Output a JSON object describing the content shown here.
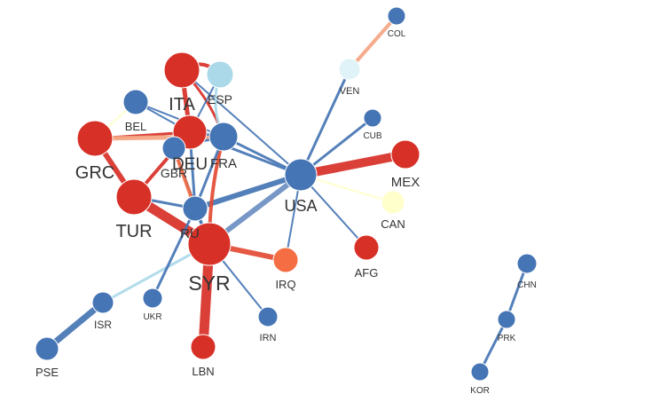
{
  "nodes": [
    {
      "id": "COL",
      "label": "COL",
      "color": "#4575b4"
    },
    {
      "id": "VEN",
      "label": "VEN",
      "color": "#e0f3f8"
    },
    {
      "id": "CUB",
      "label": "CUB",
      "color": "#4575b4"
    },
    {
      "id": "MEX",
      "label": "MEX",
      "color": "#d73027"
    },
    {
      "id": "CAN",
      "label": "CAN",
      "color": "#ffffcc"
    },
    {
      "id": "USA",
      "label": "USA",
      "color": "#4575b4"
    },
    {
      "id": "AFG",
      "label": "AFG",
      "color": "#d73027"
    },
    {
      "id": "IRQ",
      "label": "IRQ",
      "color": "#f46d43"
    },
    {
      "id": "IRN",
      "label": "IRN",
      "color": "#4575b4"
    },
    {
      "id": "ITA",
      "label": "ITA",
      "color": "#d73027"
    },
    {
      "id": "ESP",
      "label": "ESP",
      "color": "#abd9e9"
    },
    {
      "id": "BEL",
      "label": "BEL",
      "color": "#4575b4"
    },
    {
      "id": "DEU",
      "label": "DEU",
      "color": "#d73027"
    },
    {
      "id": "FRA",
      "label": "FRA",
      "color": "#4575b4"
    },
    {
      "id": "GBR",
      "label": "GBR",
      "color": "#4575b4"
    },
    {
      "id": "GRC",
      "label": "GRC",
      "color": "#d73027"
    },
    {
      "id": "TUR",
      "label": "TUR",
      "color": "#d73027"
    },
    {
      "id": "RUS",
      "label": "RU",
      "color": "#4575b4"
    },
    {
      "id": "SYR",
      "label": "SYR",
      "color": "#d73027"
    },
    {
      "id": "UKR",
      "label": "UKR",
      "color": "#4575b4"
    },
    {
      "id": "ISR",
      "label": "ISR",
      "color": "#4575b4"
    },
    {
      "id": "PSE",
      "label": "PSE",
      "color": "#4575b4"
    },
    {
      "id": "LBN",
      "label": "LBN",
      "color": "#d73027"
    },
    {
      "id": "CHN",
      "label": "CHN",
      "color": "#4575b4"
    },
    {
      "id": "PRK",
      "label": "PRK",
      "color": "#4575b4"
    },
    {
      "id": "KOR",
      "label": "KOR",
      "color": "#4575b4"
    }
  ],
  "edges": [
    {
      "source": "COL",
      "target": "VEN",
      "color": "#f4a582"
    },
    {
      "source": "VEN",
      "target": "USA",
      "color": "#4575b4"
    },
    {
      "source": "CUB",
      "target": "USA",
      "color": "#4575b4"
    },
    {
      "source": "MEX",
      "target": "USA",
      "color": "#d73027"
    },
    {
      "source": "CAN",
      "target": "USA",
      "color": "#ffffcc"
    },
    {
      "source": "AFG",
      "target": "USA",
      "color": "#4575b4"
    },
    {
      "source": "IRQ",
      "target": "USA",
      "color": "#4575b4"
    },
    {
      "source": "IRQ",
      "target": "SYR",
      "color": "#e34a33"
    },
    {
      "source": "IRN",
      "target": "SYR",
      "color": "#4575b4"
    },
    {
      "source": "USA",
      "target": "SYR",
      "color": "#6b8fc2"
    },
    {
      "source": "USA",
      "target": "RUS",
      "color": "#4575b4"
    },
    {
      "source": "USA",
      "target": "FRA",
      "color": "#4575b4"
    },
    {
      "source": "USA",
      "target": "DEU",
      "color": "#4575b4"
    },
    {
      "source": "USA",
      "target": "ITA",
      "color": "#4575b4"
    },
    {
      "source": "SYR",
      "target": "LBN",
      "color": "#d73027"
    },
    {
      "source": "SYR",
      "target": "TUR",
      "color": "#d73027"
    },
    {
      "source": "SYR",
      "target": "RUS",
      "color": "#4575b4"
    },
    {
      "source": "SYR",
      "target": "FRA",
      "color": "#e34a33"
    },
    {
      "source": "SYR",
      "target": "GBR",
      "color": "#4575b4"
    },
    {
      "source": "SYR",
      "target": "ISR",
      "color": "#abd9e9"
    },
    {
      "source": "ISR",
      "target": "PSE",
      "color": "#4575b4"
    },
    {
      "source": "RUS",
      "target": "UKR",
      "color": "#4575b4"
    },
    {
      "source": "RUS",
      "target": "TUR",
      "color": "#4575b4"
    },
    {
      "source": "RUS",
      "target": "DEU",
      "color": "#4575b4"
    },
    {
      "source": "RUS",
      "target": "FRA",
      "color": "#4575b4"
    },
    {
      "source": "GRC",
      "target": "TUR",
      "color": "#d73027"
    },
    {
      "source": "GRC",
      "target": "DEU",
      "color": "#d73027"
    },
    {
      "source": "GRC",
      "target": "FRA",
      "color": "#f4a582"
    },
    {
      "source": "GRC",
      "target": "BEL",
      "color": "#ffffcc"
    },
    {
      "source": "TUR",
      "target": "DEU",
      "color": "#d73027"
    },
    {
      "source": "ITA",
      "target": "DEU",
      "color": "#d73027"
    },
    {
      "source": "ITA",
      "target": "ESP",
      "color": "#d73027"
    },
    {
      "source": "ITA",
      "target": "FRA",
      "color": "#d73027"
    },
    {
      "source": "ESP",
      "target": "FRA",
      "color": "#abd9e9"
    },
    {
      "source": "ESP",
      "target": "DEU",
      "color": "#4575b4"
    },
    {
      "source": "BEL",
      "target": "FRA",
      "color": "#4575b4"
    },
    {
      "source": "BEL",
      "target": "DEU",
      "color": "#4575b4"
    },
    {
      "source": "DEU",
      "target": "FRA",
      "color": "#4575b4"
    },
    {
      "source": "DEU",
      "target": "GBR",
      "color": "#4575b4"
    },
    {
      "source": "GBR",
      "target": "FRA",
      "color": "#4575b4"
    },
    {
      "source": "GBR",
      "target": "RUS",
      "color": "#f46d43"
    },
    {
      "source": "CHN",
      "target": "PRK",
      "color": "#4575b4"
    },
    {
      "source": "PRK",
      "target": "KOR",
      "color": "#4575b4"
    }
  ]
}
